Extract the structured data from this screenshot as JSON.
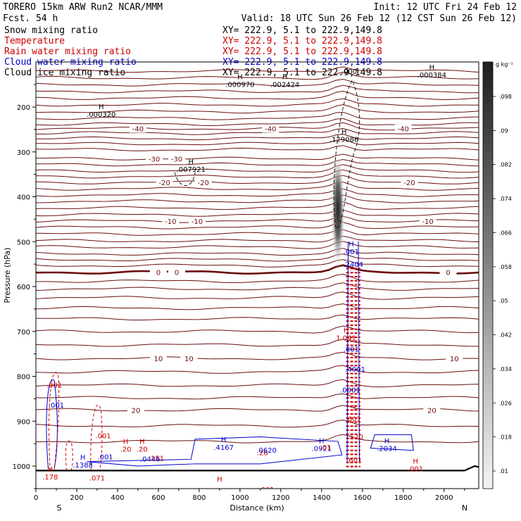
{
  "header": {
    "model": "TORERO   15km ARW    Run2     NCAR/MMM",
    "init": "Init: 12 UTC Fri 24 Feb 12",
    "fcst": "Fcst.    54 h",
    "valid": "Valid: 18 UTC Sun 26 Feb 12 (12 CST Sun 26 Feb 12)"
  },
  "colors": {
    "snow": "#000000",
    "temperature": "#6b0e0e",
    "rain": "#cc0000",
    "cloud_water": "#0000cc",
    "cloud_ice": "#000000",
    "ground": "#000000"
  },
  "chart_data": {
    "type": "cross-section",
    "title": "Snow mixing ratio / Temperature / Rain water / Cloud water / Cloud ice",
    "legend": [
      {
        "name": "Snow mixing ratio",
        "xy": "XY= 222.9,   5.1 to 222.9,149.8",
        "color": "#000000"
      },
      {
        "name": "Temperature",
        "xy": "XY= 222.9,   5.1 to 222.9,149.8",
        "color": "#cc0000"
      },
      {
        "name": "Rain water mixing ratio",
        "xy": "XY= 222.9,   5.1 to 222.9,149.8",
        "color": "#cc0000"
      },
      {
        "name": "Cloud water mixing ratio",
        "xy": "XY= 222.9,   5.1 to 222.9,149.8",
        "color": "#0000cc"
      },
      {
        "name": "Cloud ice mixing ratio",
        "xy": "XY= 222.9,   5.1 to 222.9,149.8",
        "color": "#000000"
      }
    ],
    "xlabel": "Distance (km)",
    "ylabel": "Pressure (hPa)",
    "xlim": [
      0,
      2170
    ],
    "ylim": [
      1050,
      100
    ],
    "x_ticks": [
      0,
      200,
      400,
      600,
      800,
      1000,
      1200,
      1400,
      1600,
      1800,
      2000
    ],
    "y_ticks": [
      200,
      300,
      400,
      500,
      600,
      700,
      800,
      900,
      1000
    ],
    "endpoints": {
      "left": "S",
      "right": "N"
    },
    "colorbar": {
      "unit": "g kg⁻¹",
      "ticks": [
        ".01",
        ".018",
        ".026",
        ".034",
        ".042",
        ".05",
        ".058",
        ".066",
        ".074",
        ".082",
        ".09",
        ".098"
      ]
    },
    "isotherms": [
      {
        "label": "-40",
        "base_p": 248,
        "label_x": [
          500,
          1150,
          1800
        ]
      },
      {
        "label": "-30",
        "base_p": 315,
        "label_x": [
          580,
          690
        ]
      },
      {
        "label": "-20",
        "base_p": 368,
        "label_x": [
          630,
          820,
          1830
        ]
      },
      {
        "label": "-10",
        "base_p": 454,
        "label_x": [
          660,
          790,
          1920
        ]
      },
      {
        "label": "0",
        "base_p": 568,
        "label_x": [
          600,
          690,
          2020
        ]
      },
      {
        "label": "10",
        "base_p": 760,
        "label_x": [
          600,
          750,
          2050
        ]
      },
      {
        "label": "20",
        "base_p": 875,
        "label_x": [
          490,
          1940
        ]
      }
    ],
    "isotherm_unlabeled_p": [
      120,
      135,
      150,
      165,
      180,
      195,
      210,
      225,
      238,
      258,
      270,
      282,
      295,
      328,
      342,
      355,
      382,
      396,
      410,
      425,
      440,
      468,
      483,
      498,
      512,
      527,
      540,
      553,
      588,
      605,
      625,
      648,
      672,
      700,
      730,
      790,
      820,
      848,
      910,
      945
    ],
    "surface_pressure": 1010,
    "extrema": [
      {
        "x": 1000,
        "p": 155,
        "sym": "H",
        "val": ".000970",
        "color": "#000000"
      },
      {
        "x": 1220,
        "p": 155,
        "sym": "H",
        "val": ".002424",
        "color": "#000000"
      },
      {
        "x": 1940,
        "p": 134,
        "sym": "H",
        "val": ".000384",
        "color": "#000000"
      },
      {
        "x": 320,
        "p": 222,
        "sym": "H",
        "val": ".000320",
        "color": "#000000"
      },
      {
        "x": 1510,
        "p": 278,
        "sym": "H",
        "val": ".129086",
        "color": "#000000"
      },
      {
        "x": 760,
        "p": 344,
        "sym": "H",
        "val": ".007921",
        "color": "#000000"
      },
      {
        "x": 1535,
        "p": 126,
        "sym": "",
        "val": ".000",
        "color": "#000000"
      },
      {
        "x": 1545,
        "p": 528,
        "sym": "H",
        "val": ".001",
        "color": "#0000cc"
      },
      {
        "x": 1555,
        "p": 556,
        "sym": "",
        "val": ".2404",
        "color": "#0000cc"
      },
      {
        "x": 1520,
        "p": 720,
        "sym": "H",
        "val": "1.041",
        "color": "#cc0000"
      },
      {
        "x": 1545,
        "p": 745,
        "sym": "",
        "val": ".001",
        "color": "#0000cc"
      },
      {
        "x": 1565,
        "p": 790,
        "sym": "",
        "val": ".4001",
        "color": "#0000cc"
      },
      {
        "x": 1540,
        "p": 836,
        "sym": "",
        "val": ".0001",
        "color": "#0000cc"
      },
      {
        "x": 1555,
        "p": 875,
        "sym": "",
        "val": ".3",
        "color": "#cc0000"
      },
      {
        "x": 1560,
        "p": 900,
        "sym": "",
        "val": "601",
        "color": "#cc0000"
      },
      {
        "x": 1565,
        "p": 940,
        "sym": "",
        "val": ".120",
        "color": "#cc0000"
      },
      {
        "x": 1560,
        "p": 992,
        "sym": "",
        "val": ".601",
        "color": "#cc0000"
      },
      {
        "x": 90,
        "p": 825,
        "sym": "",
        "val": ".001",
        "color": "#cc0000"
      },
      {
        "x": 100,
        "p": 870,
        "sym": "",
        "val": ".001",
        "color": "#0000cc"
      },
      {
        "x": 330,
        "p": 938,
        "sym": "",
        "val": ".001",
        "color": "#cc0000"
      },
      {
        "x": 340,
        "p": 985,
        "sym": "",
        "val": ".001",
        "color": "#0000cc"
      },
      {
        "x": 230,
        "p": 1003,
        "sym": "H",
        "val": ".1388",
        "color": "#0000cc"
      },
      {
        "x": 300,
        "p": 1032,
        "sym": "",
        "val": ".071",
        "color": "#cc0000"
      },
      {
        "x": 70,
        "p": 1030,
        "sym": "H",
        "val": ".178",
        "color": "#cc0000"
      },
      {
        "x": 440,
        "p": 968,
        "sym": "H",
        "val": ".20",
        "color": "#cc0000"
      },
      {
        "x": 520,
        "p": 968,
        "sym": "H",
        "val": ".20",
        "color": "#cc0000"
      },
      {
        "x": 560,
        "p": 990,
        "sym": "",
        "val": ".0446",
        "color": "#0000cc"
      },
      {
        "x": 590,
        "p": 988,
        "sym": "",
        "val": ".151",
        "color": "#cc0000"
      },
      {
        "x": 460,
        "p": 1060,
        "sym": "",
        "val": ".001",
        "color": "#cc0000"
      },
      {
        "x": 920,
        "p": 964,
        "sym": "H",
        "val": ".4167",
        "color": "#0000cc"
      },
      {
        "x": 1110,
        "p": 976,
        "sym": "",
        "val": ".26",
        "color": "#cc0000"
      },
      {
        "x": 1130,
        "p": 970,
        "sym": "",
        "val": ".0620",
        "color": "#0000cc"
      },
      {
        "x": 1400,
        "p": 966,
        "sym": "H",
        "val": ".0921",
        "color": "#0000cc"
      },
      {
        "x": 1420,
        "p": 964,
        "sym": "",
        "val": ".01",
        "color": "#cc0000"
      },
      {
        "x": 1720,
        "p": 966,
        "sym": "H",
        "val": ".2034",
        "color": "#0000cc"
      },
      {
        "x": 1860,
        "p": 1012,
        "sym": "H",
        "val": ".001",
        "color": "#cc0000"
      },
      {
        "x": 1130,
        "p": 1058,
        "sym": "",
        "val": ".001",
        "color": "#cc0000"
      },
      {
        "x": 900,
        "p": 1052,
        "sym": "H",
        "val": "",
        "color": "#cc0000"
      }
    ]
  }
}
